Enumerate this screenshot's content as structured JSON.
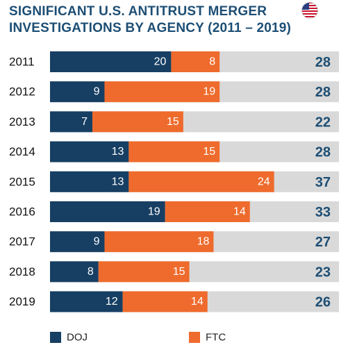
{
  "title_line1": "SIGNIFICANT U.S. ANTITRUST MERGER",
  "title_line2": "INVESTIGATIONS BY AGENCY (2011 – 2019)",
  "flag_icon": "us-flag-icon",
  "colors": {
    "doj": "#173f63",
    "ftc": "#ee6b2d",
    "track": "#d9d9d9",
    "year_text": "#111111",
    "total_text": "#1d4e74",
    "title": "#1d4e74"
  },
  "chart_data": {
    "type": "bar",
    "orientation": "horizontal",
    "stacked": true,
    "categories": [
      "2011",
      "2012",
      "2013",
      "2014",
      "2015",
      "2016",
      "2017",
      "2018",
      "2019"
    ],
    "series": [
      {
        "name": "DOJ",
        "values": [
          20,
          9,
          7,
          13,
          13,
          19,
          9,
          8,
          12
        ]
      },
      {
        "name": "FTC",
        "values": [
          8,
          19,
          15,
          15,
          24,
          14,
          18,
          15,
          14
        ]
      }
    ],
    "totals": [
      28,
      28,
      22,
      28,
      37,
      33,
      27,
      23,
      26
    ],
    "xlim": [
      0,
      40
    ],
    "legend_position": "bottom"
  }
}
